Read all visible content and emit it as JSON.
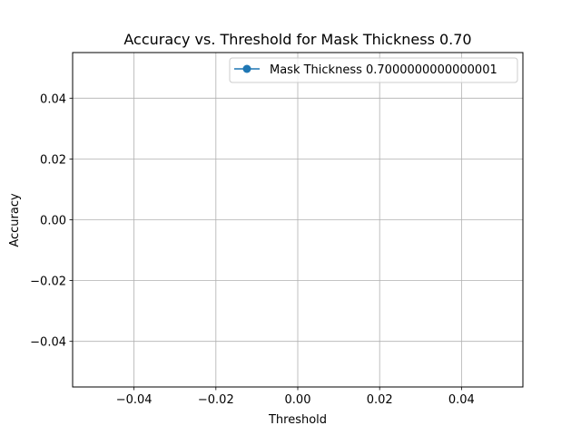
{
  "chart_data": {
    "type": "line",
    "title": "Accuracy vs. Threshold for Mask Thickness 0.70",
    "xlabel": "Threshold",
    "ylabel": "Accuracy",
    "xlim": [
      -0.055,
      0.055
    ],
    "ylim": [
      -0.055,
      0.055
    ],
    "xticks": [
      -0.04,
      -0.02,
      0.0,
      0.02,
      0.04
    ],
    "xtick_labels": [
      "−0.04",
      "−0.02",
      "0.00",
      "0.02",
      "0.04"
    ],
    "yticks": [
      -0.04,
      -0.02,
      0.0,
      0.02,
      0.04
    ],
    "ytick_labels": [
      "−0.04",
      "−0.02",
      "0.00",
      "0.02",
      "0.04"
    ],
    "grid": true,
    "legend_position": "top-right",
    "series": [
      {
        "name": "Mask Thickness 0.7000000000000001",
        "color": "#1f77b4",
        "marker": "circle",
        "x": [],
        "y": []
      }
    ]
  }
}
